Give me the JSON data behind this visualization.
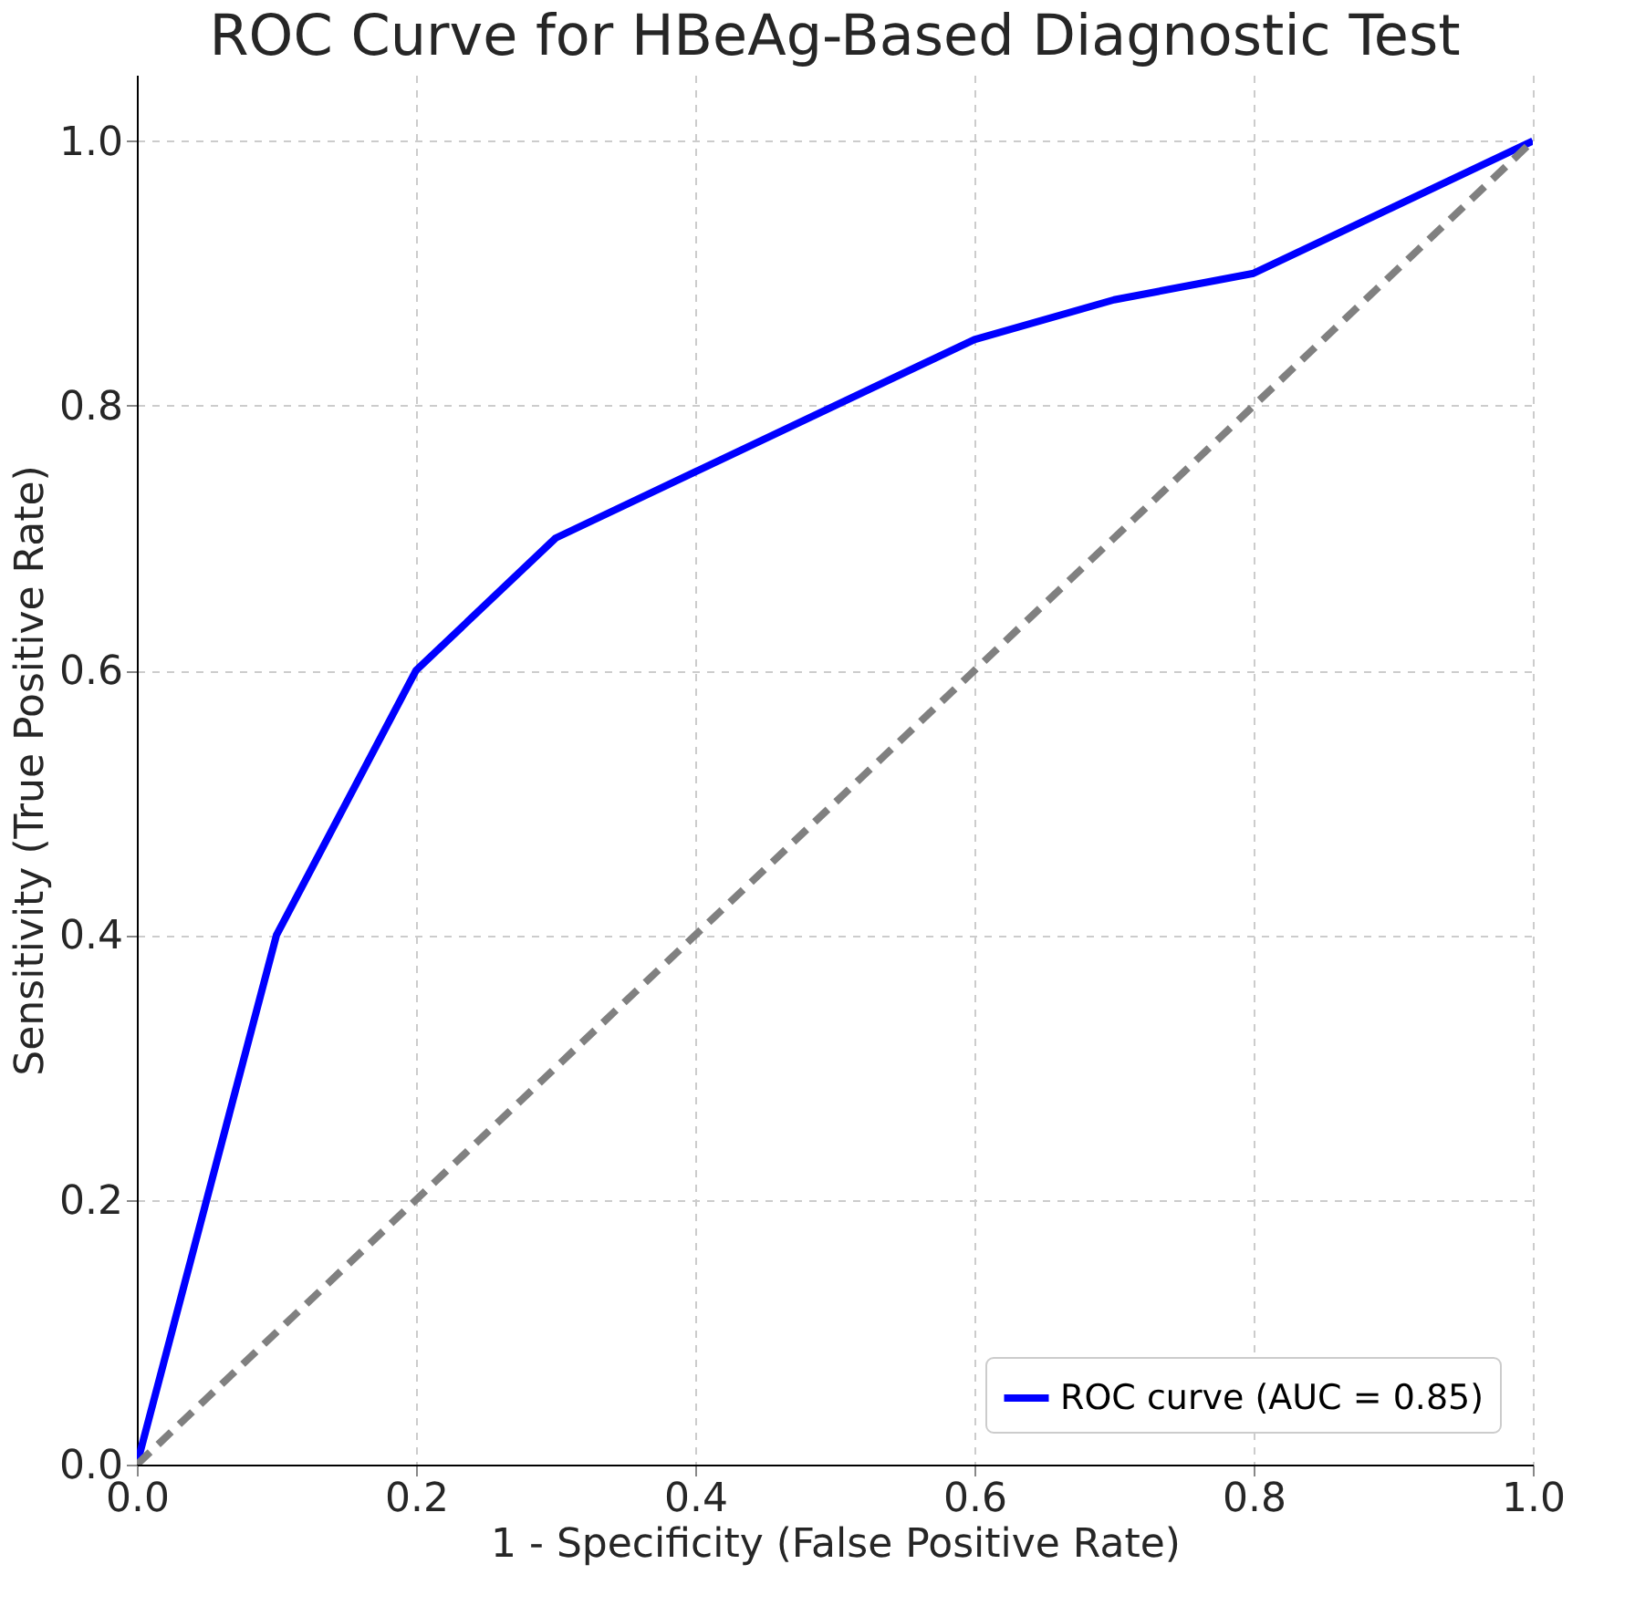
{
  "chart_data": {
    "type": "line",
    "title": "ROC Curve for HBeAg-Based Diagnostic Test",
    "xlabel": "1 - Specificity (False Positive Rate)",
    "ylabel": "Sensitivity (True Positive Rate)",
    "series": [
      {
        "name": "ROC curve (AUC = 0.85)",
        "color": "#0000ff",
        "line_style": "solid",
        "x": [
          0,
          0.1,
          0.2,
          0.3,
          0.4,
          0.5,
          0.6,
          0.7,
          0.8,
          0.9,
          1.0
        ],
        "values": [
          0,
          0.4,
          0.6,
          0.7,
          0.75,
          0.8,
          0.85,
          0.88,
          0.9,
          0.95,
          1.0
        ]
      },
      {
        "color": "#808080",
        "line_style": "dashed",
        "x": [
          0,
          1
        ],
        "values": [
          0,
          1
        ]
      }
    ],
    "xlim": [
      0,
      1
    ],
    "ylim": [
      0,
      1.05
    ],
    "xticks": [
      {
        "value": 0,
        "label": "0.0"
      },
      {
        "value": 0.2,
        "label": "0.2"
      },
      {
        "value": 0.4,
        "label": "0.4"
      },
      {
        "value": 0.6,
        "label": "0.6"
      },
      {
        "value": 0.8,
        "label": "0.8"
      },
      {
        "value": 1,
        "label": "1.0"
      }
    ],
    "yticks": [
      {
        "value": 0,
        "label": "0.0"
      },
      {
        "value": 0.2,
        "label": "0.2"
      },
      {
        "value": 0.4,
        "label": "0.4"
      },
      {
        "value": 0.6,
        "label": "0.6"
      },
      {
        "value": 0.8,
        "label": "0.8"
      },
      {
        "value": 1,
        "label": "1.0"
      }
    ],
    "grid": true,
    "legend": "bottom right",
    "marker": "none"
  }
}
